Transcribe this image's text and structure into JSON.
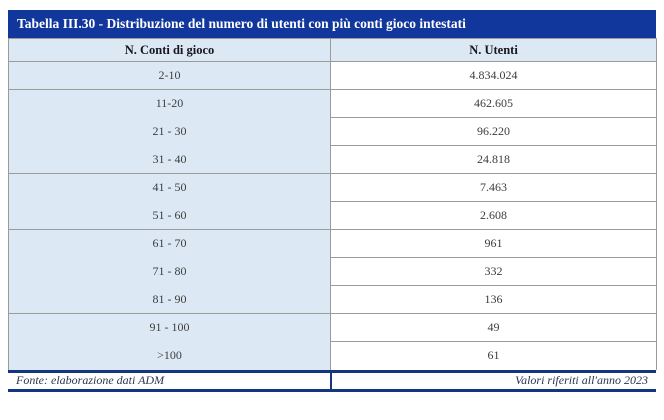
{
  "table": {
    "title": "Tabella III.30 - Distribuzione del numero di utenti con più conti gioco intestati",
    "columns": [
      "N. Conti di gioco",
      "N. Utenti"
    ],
    "rows": [
      {
        "range": "2-10",
        "users": "4.834.024"
      },
      {
        "range": "11-20",
        "users": "462.605"
      },
      {
        "range": "21 - 30",
        "users": "96.220"
      },
      {
        "range": "31 - 40",
        "users": "24.818"
      },
      {
        "range": "41 - 50",
        "users": "7.463"
      },
      {
        "range": "51 - 60",
        "users": "2.608"
      },
      {
        "range": "61 - 70",
        "users": "961"
      },
      {
        "range": "71 - 80",
        "users": "332"
      },
      {
        "range": "81 - 90",
        "users": "136"
      },
      {
        "range": "91 - 100",
        "users": "49"
      },
      {
        "range": ">100",
        "users": "61"
      }
    ],
    "footer": {
      "source": "Fonte: elaborazione dati ADM",
      "note": "Valori riferiti all'anno 2023"
    },
    "colors": {
      "title_bar_navy": "#11379c",
      "footer_accent_navy": "#16357f",
      "cell_light_blue": "#dce9f5",
      "grid_gray": "#9b9b9b",
      "body_text": "#3d3d3d"
    }
  }
}
